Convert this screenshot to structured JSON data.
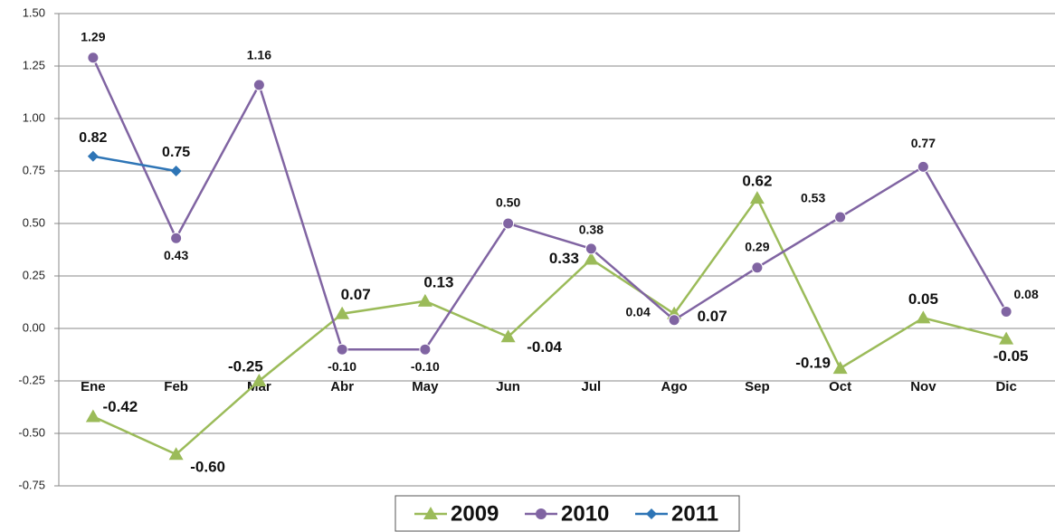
{
  "chart_data": {
    "type": "line",
    "categories": [
      "Ene",
      "Feb",
      "Mar",
      "Abr",
      "May",
      "Jun",
      "Jul",
      "Ago",
      "Sep",
      "Oct",
      "Nov",
      "Dic"
    ],
    "series": [
      {
        "name": "2009",
        "color": "#9bbb59",
        "marker": "triangle",
        "values": [
          -0.42,
          -0.6,
          -0.25,
          0.07,
          0.13,
          -0.04,
          0.33,
          0.07,
          0.62,
          -0.19,
          0.05,
          -0.05
        ],
        "value_labels": [
          "-0.42",
          "-0.60",
          "-0.25",
          "0.07",
          "0.13",
          "-0.04",
          "0.33",
          "0.07",
          "0.62",
          "-0.19",
          "0.05",
          "-0.05"
        ]
      },
      {
        "name": "2010",
        "color": "#8064a2",
        "marker": "circle",
        "values": [
          1.29,
          0.43,
          1.16,
          -0.1,
          -0.1,
          0.5,
          0.38,
          0.04,
          0.29,
          0.53,
          0.77,
          0.08
        ],
        "value_labels": [
          "1.29",
          "0.43",
          "1.16",
          "-0.10",
          "-0.10",
          "0.50",
          "0.38",
          "0.04",
          "0.29",
          "0.53",
          "0.77",
          "0.08"
        ]
      },
      {
        "name": "2011",
        "color": "#2e75b6",
        "marker": "diamond",
        "values": [
          0.82,
          0.75,
          null,
          null,
          null,
          null,
          null,
          null,
          null,
          null,
          null,
          null
        ],
        "value_labels": [
          "0.82",
          "0.75",
          null,
          null,
          null,
          null,
          null,
          null,
          null,
          null,
          null,
          null
        ]
      }
    ],
    "ylim": [
      -0.75,
      1.5
    ],
    "yticks": [
      {
        "value": 1.5,
        "label": "1.50"
      },
      1.25,
      {
        "value": 1,
        "label": "1.00"
      },
      0.75,
      {
        "value": 0.5,
        "label": "0.50"
      },
      0.25,
      {
        "value": 0,
        "label": "0.00"
      },
      -0.25,
      {
        "value": -0.5,
        "label": "-0.50"
      },
      -0.75
    ],
    "grid": true,
    "legend": "bottom"
  }
}
